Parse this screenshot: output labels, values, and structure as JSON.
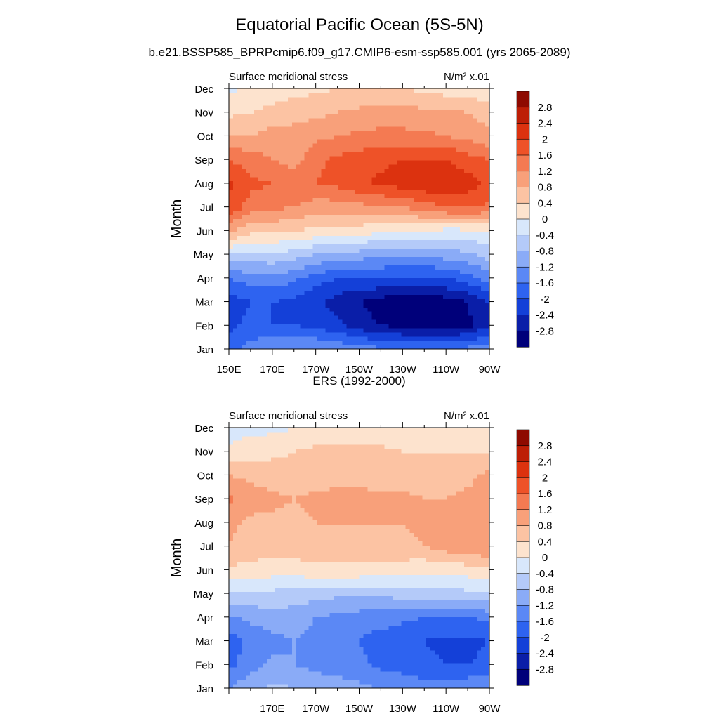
{
  "figure": {
    "title": "Equatorial Pacific Ocean (5S-5N)",
    "subtitle": "b.e21.BSSP585_BPRPcmip6.f09_g17.CMIP6-esm-ssp585.001 (yrs 2065-2089)"
  },
  "colors": {
    "levels": [
      -3.2,
      -2.8,
      -2.4,
      -2.0,
      -1.6,
      -1.2,
      -0.8,
      -0.4,
      0.0,
      0.4,
      0.8,
      1.2,
      1.6,
      2.0,
      2.4,
      2.8,
      3.2
    ],
    "palette": [
      "#00007a",
      "#0a1ea8",
      "#1440d8",
      "#2e63f0",
      "#5b88f5",
      "#8aabf7",
      "#b4caf9",
      "#d8e7fb",
      "#fde3ce",
      "#fcc3a3",
      "#f8a07a",
      "#f47a52",
      "#ee5228",
      "#dc320f",
      "#bd1e06",
      "#8e0a00"
    ],
    "colorbar_labels": [
      "2.8",
      "2.4",
      "2",
      "1.6",
      "1.2",
      "0.8",
      "0.4",
      "0",
      "-0.4",
      "-0.8",
      "-1.2",
      "-1.6",
      "-2",
      "-2.4",
      "-2.8"
    ]
  },
  "chart_data": [
    {
      "type": "heatmap",
      "title": "",
      "left_label": "Surface meridional stress",
      "right_label": "N/m² x.01",
      "ylabel": "Month",
      "xlabel": "",
      "x": [
        150,
        160,
        170,
        180,
        190,
        200,
        210,
        220,
        230,
        240,
        250,
        260,
        270
      ],
      "x_ticks": [
        "150E",
        "170E",
        "170W",
        "150W",
        "130W",
        "110W",
        "90W"
      ],
      "xlim": [
        150,
        270
      ],
      "y": [
        "Jan",
        "Feb",
        "Mar",
        "Apr",
        "May",
        "Jun",
        "Jul",
        "Aug",
        "Sep",
        "Oct",
        "Nov",
        "Dec"
      ],
      "z": [
        [
          -1.9,
          -1.4,
          -1.2,
          -1.2,
          -1.2,
          -1.3,
          -1.4,
          -1.5,
          -1.6,
          -1.6,
          -1.6,
          -1.5,
          -1.3
        ],
        [
          -2.1,
          -1.9,
          -2.0,
          -2.0,
          -2.1,
          -2.3,
          -2.6,
          -2.8,
          -2.9,
          -3.0,
          -3.0,
          -2.9,
          -2.4
        ],
        [
          -2.2,
          -2.0,
          -2.0,
          -2.1,
          -2.3,
          -2.6,
          -2.8,
          -3.0,
          -3.1,
          -3.1,
          -3.0,
          -2.8,
          -2.4
        ],
        [
          -1.6,
          -1.4,
          -1.3,
          -1.5,
          -1.8,
          -2.0,
          -2.0,
          -2.0,
          -2.1,
          -2.1,
          -2.0,
          -1.8,
          -1.4
        ],
        [
          -0.4,
          -0.5,
          -0.5,
          -0.6,
          -0.8,
          -0.9,
          -1.0,
          -1.1,
          -1.1,
          -1.1,
          -1.0,
          -0.9,
          -0.6
        ],
        [
          0.9,
          0.5,
          0.5,
          0.4,
          0.3,
          0.3,
          0.2,
          0.1,
          0.0,
          0.0,
          -0.1,
          -0.1,
          0.0
        ],
        [
          1.9,
          1.4,
          1.3,
          1.2,
          1.0,
          1.0,
          1.1,
          1.1,
          1.2,
          1.4,
          1.6,
          1.7,
          1.5
        ],
        [
          2.1,
          1.7,
          1.6,
          1.6,
          1.6,
          1.7,
          1.9,
          2.1,
          2.2,
          2.3,
          2.3,
          2.2,
          1.9
        ],
        [
          1.6,
          1.4,
          1.2,
          1.0,
          1.5,
          1.7,
          1.8,
          1.9,
          2.0,
          2.0,
          2.0,
          1.8,
          1.6
        ],
        [
          0.8,
          0.8,
          1.0,
          1.0,
          1.1,
          1.2,
          1.3,
          1.3,
          1.3,
          1.3,
          1.2,
          1.1,
          0.9
        ],
        [
          0.3,
          0.4,
          0.5,
          0.6,
          0.7,
          0.8,
          0.9,
          1.0,
          1.0,
          0.9,
          0.9,
          0.8,
          0.6
        ],
        [
          -0.1,
          0.1,
          0.2,
          0.3,
          0.3,
          0.4,
          0.4,
          0.4,
          0.4,
          0.3,
          0.2,
          0.2,
          0.1
        ]
      ]
    },
    {
      "type": "heatmap",
      "title": "ERS (1992-2000)",
      "left_label": "Surface meridional stress",
      "right_label": "N/m² x.01",
      "ylabel": "Month",
      "xlabel": "",
      "x": [
        150,
        160,
        170,
        180,
        190,
        200,
        210,
        220,
        230,
        240,
        250,
        260,
        270
      ],
      "x_ticks": [
        "170E",
        "170W",
        "150W",
        "130W",
        "110W",
        "90W"
      ],
      "xlim": [
        150,
        270
      ],
      "y": [
        "Jan",
        "Feb",
        "Mar",
        "Apr",
        "May",
        "Jun",
        "Jul",
        "Aug",
        "Sep",
        "Oct",
        "Nov",
        "Dec"
      ],
      "z": [
        [
          -1.2,
          -0.9,
          -0.7,
          -0.8,
          -1.0,
          -1.0,
          -1.1,
          -1.2,
          -1.3,
          -1.4,
          -1.4,
          -1.3,
          -1.2
        ],
        [
          -1.7,
          -1.4,
          -1.1,
          -1.2,
          -1.3,
          -1.4,
          -1.5,
          -1.7,
          -1.8,
          -1.9,
          -2.0,
          -2.0,
          -1.9
        ],
        [
          -1.8,
          -1.5,
          -1.3,
          -1.2,
          -1.3,
          -1.4,
          -1.6,
          -1.8,
          -1.9,
          -2.0,
          -2.1,
          -2.1,
          -2.0
        ],
        [
          -1.3,
          -1.1,
          -1.0,
          -1.0,
          -1.2,
          -1.3,
          -1.4,
          -1.4,
          -1.5,
          -1.6,
          -1.6,
          -1.6,
          -1.5
        ],
        [
          -0.5,
          -0.5,
          -0.5,
          -0.6,
          -0.6,
          -0.7,
          -0.7,
          -0.7,
          -0.6,
          -0.6,
          -0.6,
          -0.5,
          -0.4
        ],
        [
          0.3,
          0.3,
          0.2,
          0.2,
          0.3,
          0.3,
          0.3,
          0.2,
          0.2,
          0.1,
          0.1,
          0.2,
          0.3
        ],
        [
          0.8,
          0.6,
          0.6,
          0.6,
          0.7,
          0.7,
          0.7,
          0.7,
          0.7,
          0.8,
          1.0,
          1.1,
          1.2
        ],
        [
          0.9,
          0.7,
          0.7,
          0.7,
          0.8,
          0.8,
          0.8,
          0.8,
          0.8,
          0.9,
          1.0,
          1.1,
          1.2
        ],
        [
          1.3,
          1.0,
          0.9,
          0.8,
          0.9,
          0.9,
          0.9,
          0.9,
          0.9,
          0.8,
          0.8,
          0.9,
          1.0
        ],
        [
          0.8,
          0.7,
          0.6,
          0.6,
          0.6,
          0.7,
          0.7,
          0.6,
          0.6,
          0.6,
          0.6,
          0.7,
          0.9
        ],
        [
          0.1,
          0.2,
          0.3,
          0.4,
          0.5,
          0.5,
          0.5,
          0.5,
          0.4,
          0.4,
          0.4,
          0.4,
          0.4
        ],
        [
          -0.2,
          -0.1,
          -0.1,
          0.0,
          0.1,
          0.1,
          0.1,
          0.1,
          0.1,
          0.1,
          0.1,
          0.1,
          0.0
        ]
      ]
    }
  ]
}
